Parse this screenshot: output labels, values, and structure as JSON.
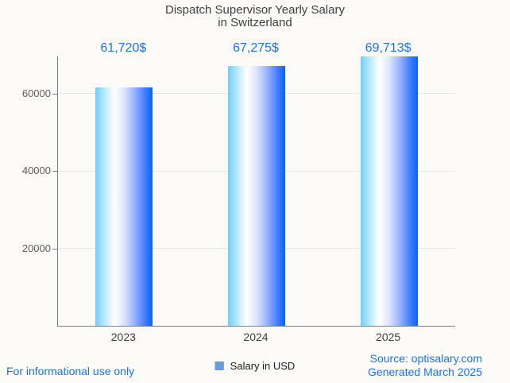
{
  "title": {
    "line1": "Dispatch Supervisor Yearly Salary",
    "line2": "in Switzerland"
  },
  "chart_data": {
    "type": "bar",
    "title": "Dispatch Supervisor Yearly Salary in Switzerland",
    "categories": [
      "2023",
      "2024",
      "2025"
    ],
    "values": [
      61720,
      67275,
      69713
    ],
    "value_labels": [
      "61,720$",
      "67,275$",
      "69,713$"
    ],
    "series_name": "Salary in USD",
    "xlabel": "",
    "ylabel": "",
    "ylim": [
      0,
      69713
    ],
    "yticks": [
      20000,
      40000,
      60000
    ],
    "ytick_labels": [
      "20000",
      "40000",
      "60000"
    ],
    "grid": "horizontal",
    "legend_position": "bottom-center",
    "bar_gradient": [
      "#6ecff9",
      "#c2ebfe",
      "#ffffff",
      "#dde5fe",
      "#9ab4fd",
      "#4a82fc",
      "#0762fb"
    ],
    "bar_gradient_stops": [
      0,
      18,
      33,
      50,
      68,
      85,
      100
    ]
  },
  "legend": {
    "label": "Salary in USD"
  },
  "footer": {
    "left": "For informational use only",
    "source": "Source: optisalary.com",
    "generated": "Generated March 2025"
  },
  "colors": {
    "background": "#fcfbf8",
    "title_text": "#3f3f3f",
    "value_label": "#1a73e8",
    "footer_text": "#1a73e8",
    "axis": "#7d7d7d",
    "gridline": "#e9e7e3",
    "legend_swatch_fill": "#64a0e0",
    "legend_swatch_border": "#82909c"
  }
}
